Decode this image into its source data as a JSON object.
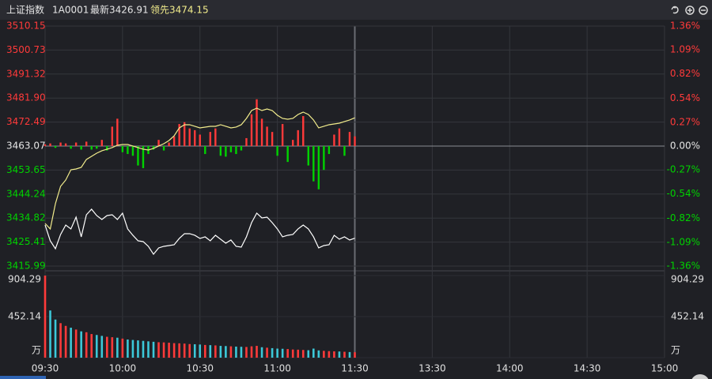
{
  "header": {
    "name": "上证指数",
    "code": "1A0001",
    "latest_label": "最新",
    "latest": 3426.91,
    "leading_label": "领先",
    "leading": 3474.15
  },
  "chart_data": {
    "type": "line",
    "x": [
      0,
      2,
      4,
      6,
      8,
      10,
      12,
      14,
      16,
      18,
      20,
      22,
      24,
      26,
      28,
      30,
      32,
      34,
      36,
      38,
      40,
      42,
      44,
      46,
      48,
      50,
      52,
      54,
      56,
      58,
      60,
      62,
      64,
      66,
      68,
      70,
      72,
      74,
      76,
      78,
      80,
      82,
      84,
      86,
      88,
      90,
      92,
      94,
      96,
      98,
      100,
      102,
      104,
      106,
      108,
      110,
      112,
      114,
      116,
      118,
      120
    ],
    "xlim": [
      0,
      240
    ],
    "xticks": [
      {
        "value": 0,
        "label": "09:30"
      },
      {
        "value": 30,
        "label": "10:00"
      },
      {
        "value": 60,
        "label": "10:30"
      },
      {
        "value": 90,
        "label": "11:00"
      },
      {
        "value": 120,
        "label": "11:30"
      },
      {
        "value": 150,
        "label": "13:30"
      },
      {
        "value": 180,
        "label": "14:00"
      },
      {
        "value": 210,
        "label": "14:30"
      },
      {
        "value": 240,
        "label": "15:00"
      }
    ],
    "ylim": [
      3415.99,
      3510.15
    ],
    "yticks": [
      3510.15,
      3500.73,
      3491.32,
      {
        "value": 3481.9,
        "label": "3481.90"
      },
      3472.49,
      3463.07,
      3453.65,
      3444.24,
      3434.82,
      3425.41,
      3415.99
    ],
    "y2lim": [
      -1.36,
      1.36
    ],
    "y2ticks": [
      {
        "value": 1.36,
        "label": "1.36%"
      },
      {
        "value": 1.09,
        "label": "1.09%"
      },
      {
        "value": 0.82,
        "label": "0.82%"
      },
      {
        "value": 0.54,
        "label": "0.54%"
      },
      {
        "value": 0.27,
        "label": "0.27%"
      },
      {
        "value": 0,
        "label": "0.00%"
      },
      {
        "value": -0.27,
        "label": "-0.27%"
      },
      {
        "value": -0.54,
        "label": "-0.54%"
      },
      {
        "value": -0.82,
        "label": "-0.82%"
      },
      {
        "value": -1.09,
        "label": "-1.09%"
      },
      {
        "value": -1.36,
        "label": "-1.36%"
      }
    ],
    "up_color": "#ff3a3a",
    "down_color": "#00d200",
    "grid": true,
    "series": [
      {
        "color": "#ffffff",
        "values": [
          3432.1,
          3425.91,
          3422.81,
          3428.39,
          3432.1,
          3430.56,
          3435.2,
          3427.46,
          3436.13,
          3438.3,
          3435.82,
          3434.27,
          3435.82,
          3436.13,
          3434.27,
          3436.75,
          3430.56,
          3428.08,
          3425.91,
          3425.6,
          3423.74,
          3420.65,
          3423.12,
          3423.74,
          3424.05,
          3424.36,
          3426.84,
          3428.7,
          3428.7,
          3428.08,
          3426.84,
          3427.46,
          3425.91,
          3428.08,
          3426.53,
          3424.98,
          3426.22,
          3423.74,
          3423.43,
          3427.46,
          3433.03,
          3436.75,
          3434.89,
          3435.2,
          3433.03,
          3430.56,
          3427.46,
          3428.08,
          3428.39,
          3430.56,
          3432.1,
          3430.56,
          3427.46,
          3423.12,
          3424.05,
          3424.36,
          3428.08,
          3426.53,
          3427.46,
          3426.22,
          3426.91
        ]
      },
      {
        "color": "#f2ec8c",
        "values": [
          3432.72,
          3430.56,
          3440.47,
          3447.28,
          3449.76,
          3453.78,
          3454.09,
          3454.71,
          3457.81,
          3459.05,
          3460.29,
          3461.22,
          3461.84,
          3462.46,
          3463.39,
          3463.69,
          3463.69,
          3463.08,
          3462.46,
          3461.84,
          3461.53,
          3462.15,
          3463.08,
          3464.0,
          3465.24,
          3467.1,
          3470.2,
          3471.44,
          3471.44,
          3470.82,
          3470.2,
          3470.51,
          3470.82,
          3470.82,
          3471.44,
          3470.82,
          3470.2,
          3470.51,
          3471.44,
          3473.92,
          3477.01,
          3477.94,
          3477.01,
          3477.63,
          3477.01,
          3475.15,
          3473.92,
          3473.61,
          3473.92,
          3475.46,
          3476.39,
          3475.46,
          3473.3,
          3470.2,
          3470.82,
          3471.44,
          3471.75,
          3472.06,
          3472.68,
          3473.3,
          3474.15
        ]
      },
      {
        "type": "bar",
        "axis": "y2",
        "values": [
          0.02,
          0.03,
          -0.02,
          0.04,
          0.03,
          -0.03,
          0.04,
          -0.04,
          0.05,
          -0.04,
          -0.03,
          0.07,
          -0.05,
          0.22,
          0.31,
          -0.07,
          -0.09,
          -0.11,
          -0.22,
          -0.25,
          -0.09,
          -0.04,
          0.07,
          -0.05,
          0.04,
          0.11,
          0.25,
          0.27,
          0.2,
          0.18,
          0.13,
          -0.09,
          0.16,
          0.2,
          -0.11,
          -0.12,
          -0.07,
          -0.09,
          -0.05,
          0.09,
          0.36,
          0.53,
          0.31,
          0.22,
          0.16,
          -0.11,
          0.25,
          -0.18,
          0.07,
          0.18,
          0.34,
          -0.22,
          -0.4,
          -0.49,
          -0.27,
          -0.09,
          0.13,
          0.2,
          -0.11,
          0.16,
          0.11
        ]
      }
    ],
    "volume": {
      "ylim": [
        0,
        904.29
      ],
      "yticks": [
        904.29,
        452.14,
        {
          "value": 0,
          "label": "万"
        }
      ],
      "up_color": "#ff3a3a",
      "down_color": "#3cc8d8",
      "values": [
        904.29,
        520,
        420,
        380,
        350,
        330,
        310,
        290,
        280,
        260,
        250,
        240,
        230,
        225,
        220,
        210,
        200,
        195,
        190,
        185,
        180,
        175,
        170,
        168,
        165,
        160,
        158,
        155,
        150,
        148,
        145,
        140,
        138,
        135,
        130,
        128,
        125,
        122,
        120,
        118,
        125,
        130,
        115,
        110,
        105,
        100,
        98,
        95,
        90,
        88,
        85,
        82,
        100,
        80,
        75,
        72,
        70,
        68,
        65,
        62,
        60
      ]
    }
  }
}
